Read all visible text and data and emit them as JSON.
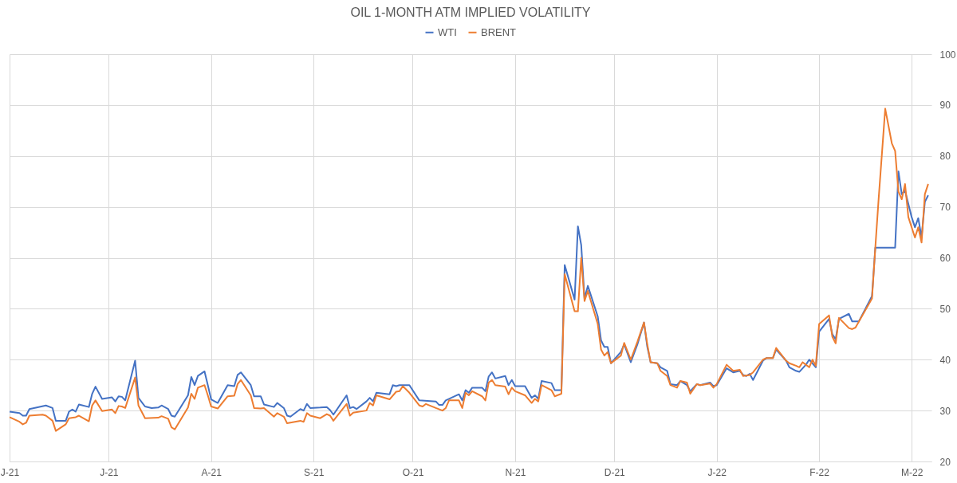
{
  "chart_data": {
    "type": "line",
    "title": "OIL 1-MONTH ATM IMPLIED VOLATILITY",
    "xlim": [
      "2021-06-01",
      "2022-03-07"
    ],
    "xticks": [
      {
        "value": "2021-06-01",
        "label": "J-21"
      },
      {
        "value": "2021-07-01",
        "label": "J-21"
      },
      {
        "value": "2021-08-01",
        "label": "A-21"
      },
      {
        "value": "2021-09-01",
        "label": "S-21"
      },
      {
        "value": "2021-10-01",
        "label": "O-21"
      },
      {
        "value": "2021-11-01",
        "label": "N-21"
      },
      {
        "value": "2021-12-01",
        "label": "D-21"
      },
      {
        "value": "2022-01-01",
        "label": "J-22"
      },
      {
        "value": "2022-02-01",
        "label": "F-22"
      },
      {
        "value": "2022-03-01",
        "label": "M-22"
      }
    ],
    "ylim": [
      20,
      100
    ],
    "yticks": [
      20,
      30,
      40,
      50,
      60,
      70,
      80,
      90,
      100
    ],
    "grid": true,
    "legend": "top",
    "marker": "none",
    "line_style": "solid",
    "series": [
      {
        "name": "WTI",
        "color": "#4472c4",
        "x": [
          "2021-06-01",
          "2021-06-04",
          "2021-06-05",
          "2021-06-06",
          "2021-06-07",
          "2021-06-12",
          "2021-06-14",
          "2021-06-15",
          "2021-06-18",
          "2021-06-19",
          "2021-06-20",
          "2021-06-21",
          "2021-06-22",
          "2021-06-25",
          "2021-06-26",
          "2021-06-27",
          "2021-06-29",
          "2021-07-02",
          "2021-07-03",
          "2021-07-04",
          "2021-07-05",
          "2021-07-06",
          "2021-07-09",
          "2021-07-10",
          "2021-07-12",
          "2021-07-14",
          "2021-07-16",
          "2021-07-17",
          "2021-07-19",
          "2021-07-20",
          "2021-07-21",
          "2021-07-25",
          "2021-07-26",
          "2021-07-27",
          "2021-07-28",
          "2021-07-30",
          "2021-07-31",
          "2021-08-01",
          "2021-08-03",
          "2021-08-06",
          "2021-08-08",
          "2021-08-09",
          "2021-08-10",
          "2021-08-13",
          "2021-08-14",
          "2021-08-16",
          "2021-08-17",
          "2021-08-20",
          "2021-08-21",
          "2021-08-23",
          "2021-08-24",
          "2021-08-25",
          "2021-08-28",
          "2021-08-29",
          "2021-08-30",
          "2021-08-31",
          "2021-09-03",
          "2021-09-05",
          "2021-09-06",
          "2021-09-07",
          "2021-09-11",
          "2021-09-12",
          "2021-09-13",
          "2021-09-14",
          "2021-09-17",
          "2021-09-18",
          "2021-09-19",
          "2021-09-20",
          "2021-09-24",
          "2021-09-25",
          "2021-09-26",
          "2021-09-27",
          "2021-09-30",
          "2021-10-03",
          "2021-10-08",
          "2021-10-09",
          "2021-10-10",
          "2021-10-11",
          "2021-10-15",
          "2021-10-16",
          "2021-10-17",
          "2021-10-18",
          "2021-10-19",
          "2021-10-22",
          "2021-10-23",
          "2021-10-24",
          "2021-10-25",
          "2021-10-26",
          "2021-10-29",
          "2021-10-30",
          "2021-10-31",
          "2021-11-01",
          "2021-11-04",
          "2021-11-06",
          "2021-11-07",
          "2021-11-08",
          "2021-11-09",
          "2021-11-12",
          "2021-11-13",
          "2021-11-15",
          "2021-11-16",
          "2021-11-19",
          "2021-11-20",
          "2021-11-21",
          "2021-11-22",
          "2021-11-23",
          "2021-11-26",
          "2021-11-27",
          "2021-11-28",
          "2021-11-29",
          "2021-11-30",
          "2021-12-03",
          "2021-12-04",
          "2021-12-06",
          "2021-12-08",
          "2021-12-10",
          "2021-12-11",
          "2021-12-12",
          "2021-12-14",
          "2021-12-15",
          "2021-12-17",
          "2021-12-18",
          "2021-12-20",
          "2021-12-21",
          "2021-12-23",
          "2021-12-24",
          "2021-12-26",
          "2021-12-27",
          "2021-12-30",
          "2021-12-31",
          "2022-01-01",
          "2022-01-04",
          "2022-01-06",
          "2022-01-08",
          "2022-01-09",
          "2022-01-10",
          "2022-01-11",
          "2022-01-12",
          "2022-01-15",
          "2022-01-16",
          "2022-01-18",
          "2022-01-19",
          "2022-01-22",
          "2022-01-23",
          "2022-01-25",
          "2022-01-26",
          "2022-01-28",
          "2022-01-29",
          "2022-01-31",
          "2022-02-01",
          "2022-02-04",
          "2022-02-05",
          "2022-02-06",
          "2022-02-07",
          "2022-02-10",
          "2022-02-11",
          "2022-02-13",
          "2022-02-17",
          "2022-02-18",
          "2022-02-24",
          "2022-02-25",
          "2022-02-26",
          "2022-02-27",
          "2022-03-01",
          "2022-03-02",
          "2022-03-03",
          "2022-03-04",
          "2022-03-05",
          "2022-03-06"
        ],
        "values": [
          29.8,
          29.5,
          29.0,
          29.0,
          30.3,
          31.0,
          30.5,
          28.0,
          28.0,
          29.8,
          30.2,
          29.8,
          31.2,
          30.7,
          33.3,
          34.7,
          32.3,
          32.6,
          31.8,
          32.8,
          32.7,
          32.0,
          39.8,
          32.5,
          30.8,
          30.5,
          30.6,
          31.0,
          30.3,
          29.0,
          28.8,
          33.0,
          36.6,
          35.0,
          36.8,
          37.7,
          35.0,
          32.2,
          31.5,
          35.0,
          34.8,
          37.0,
          37.5,
          35.0,
          32.8,
          32.8,
          31.2,
          30.7,
          31.5,
          30.5,
          29.0,
          28.8,
          30.3,
          30.0,
          31.3,
          30.5,
          30.6,
          30.7,
          30.1,
          29.2,
          33.0,
          30.5,
          30.7,
          30.3,
          31.8,
          32.5,
          31.8,
          33.5,
          33.2,
          35.0,
          34.8,
          35.0,
          35.0,
          32.0,
          31.8,
          31.1,
          31.1,
          32.0,
          33.2,
          32.0,
          34.0,
          33.5,
          34.5,
          34.5,
          33.8,
          36.7,
          37.5,
          36.3,
          36.8,
          35.0,
          36.0,
          34.8,
          34.8,
          32.5,
          33.0,
          32.3,
          35.8,
          35.4,
          34.0,
          34.0,
          58.6,
          51.8,
          66.2,
          62.5,
          52.0,
          54.5,
          48.5,
          43.8,
          42.5,
          42.5,
          39.3,
          41.5,
          43.0,
          39.5,
          43.0,
          47.3,
          42.5,
          39.5,
          39.3,
          38.5,
          37.8,
          35.2,
          35.0,
          35.8,
          35.0,
          33.8,
          35.2,
          35.0,
          35.5,
          34.8,
          35.0,
          38.3,
          37.5,
          37.8,
          37.0,
          36.8,
          37.2,
          36.0,
          39.8,
          40.3,
          40.3,
          42.0,
          39.8,
          38.5,
          37.8,
          37.6,
          39.0,
          40.0,
          38.5,
          45.5,
          48.0,
          45.0,
          44.0,
          48.0,
          49.0,
          47.5,
          47.5,
          52.5,
          62.0,
          62.0,
          77.0,
          72.5,
          73.2,
          68.0,
          66.0,
          67.8,
          64.0,
          71.0,
          72.3
        ]
      },
      {
        "name": "BRENT",
        "color": "#ed7d31",
        "x": [
          "2021-06-01",
          "2021-06-04",
          "2021-06-05",
          "2021-06-06",
          "2021-06-07",
          "2021-06-11",
          "2021-06-12",
          "2021-06-14",
          "2021-06-15",
          "2021-06-18",
          "2021-06-19",
          "2021-06-21",
          "2021-06-22",
          "2021-06-25",
          "2021-06-26",
          "2021-06-27",
          "2021-06-29",
          "2021-07-02",
          "2021-07-03",
          "2021-07-04",
          "2021-07-05",
          "2021-07-06",
          "2021-07-09",
          "2021-07-10",
          "2021-07-12",
          "2021-07-16",
          "2021-07-17",
          "2021-07-19",
          "2021-07-20",
          "2021-07-21",
          "2021-07-25",
          "2021-07-26",
          "2021-07-27",
          "2021-07-28",
          "2021-07-30",
          "2021-07-31",
          "2021-08-01",
          "2021-08-03",
          "2021-08-06",
          "2021-08-08",
          "2021-08-09",
          "2021-08-10",
          "2021-08-13",
          "2021-08-14",
          "2021-08-16",
          "2021-08-17",
          "2021-08-20",
          "2021-08-21",
          "2021-08-23",
          "2021-08-24",
          "2021-08-28",
          "2021-08-29",
          "2021-08-30",
          "2021-08-31",
          "2021-09-03",
          "2021-09-05",
          "2021-09-06",
          "2021-09-07",
          "2021-09-11",
          "2021-09-12",
          "2021-09-13",
          "2021-09-17",
          "2021-09-18",
          "2021-09-19",
          "2021-09-20",
          "2021-09-24",
          "2021-09-26",
          "2021-09-27",
          "2021-09-28",
          "2021-09-30",
          "2021-10-03",
          "2021-10-04",
          "2021-10-05",
          "2021-10-08",
          "2021-10-10",
          "2021-10-11",
          "2021-10-12",
          "2021-10-15",
          "2021-10-16",
          "2021-10-17",
          "2021-10-18",
          "2021-10-19",
          "2021-10-22",
          "2021-10-23",
          "2021-10-24",
          "2021-10-25",
          "2021-10-26",
          "2021-10-29",
          "2021-10-30",
          "2021-10-31",
          "2021-11-01",
          "2021-11-04",
          "2021-11-06",
          "2021-11-07",
          "2021-11-08",
          "2021-11-09",
          "2021-11-12",
          "2021-11-13",
          "2021-11-15",
          "2021-11-16",
          "2021-11-19",
          "2021-11-20",
          "2021-11-21",
          "2021-11-22",
          "2021-11-23",
          "2021-11-26",
          "2021-11-27",
          "2021-11-28",
          "2021-11-29",
          "2021-11-30",
          "2021-12-03",
          "2021-12-04",
          "2021-12-06",
          "2021-12-08",
          "2021-12-10",
          "2021-12-11",
          "2021-12-12",
          "2021-12-14",
          "2021-12-15",
          "2021-12-17",
          "2021-12-18",
          "2021-12-20",
          "2021-12-21",
          "2021-12-23",
          "2021-12-24",
          "2021-12-26",
          "2021-12-27",
          "2021-12-30",
          "2021-12-31",
          "2022-01-01",
          "2022-01-04",
          "2022-01-06",
          "2022-01-08",
          "2022-01-09",
          "2022-01-11",
          "2022-01-12",
          "2022-01-15",
          "2022-01-16",
          "2022-01-18",
          "2022-01-19",
          "2022-01-22",
          "2022-01-23",
          "2022-01-25",
          "2022-01-26",
          "2022-01-27",
          "2022-01-28",
          "2022-01-29",
          "2022-01-30",
          "2022-01-31",
          "2022-02-01",
          "2022-02-04",
          "2022-02-05",
          "2022-02-06",
          "2022-02-07",
          "2022-02-10",
          "2022-02-11",
          "2022-02-12",
          "2022-02-17",
          "2022-02-18",
          "2022-02-19",
          "2022-02-21",
          "2022-02-23",
          "2022-02-24",
          "2022-02-25",
          "2022-02-26",
          "2022-02-27",
          "2022-02-28",
          "2022-03-02",
          "2022-03-03",
          "2022-03-04",
          "2022-03-05",
          "2022-03-06"
        ],
        "values": [
          28.7,
          27.8,
          27.3,
          27.6,
          29.0,
          29.2,
          29.0,
          28.0,
          26.0,
          27.3,
          28.5,
          28.7,
          29.0,
          27.9,
          31.0,
          32.0,
          29.9,
          30.2,
          29.5,
          30.9,
          30.8,
          30.5,
          36.5,
          31.0,
          28.5,
          28.6,
          28.9,
          28.4,
          26.7,
          26.3,
          30.6,
          33.3,
          32.3,
          34.5,
          35.0,
          33.0,
          30.8,
          30.4,
          32.8,
          32.9,
          35.2,
          36.0,
          33.0,
          30.5,
          30.4,
          30.5,
          28.8,
          29.5,
          28.8,
          27.5,
          28.0,
          27.8,
          29.5,
          29.0,
          28.5,
          29.3,
          29.0,
          28.0,
          31.3,
          29.0,
          29.6,
          30.0,
          31.5,
          31.0,
          33.0,
          32.2,
          33.7,
          33.8,
          34.8,
          33.5,
          31.0,
          30.8,
          31.3,
          30.5,
          30.0,
          30.5,
          32.0,
          32.0,
          30.5,
          33.5,
          33.0,
          33.8,
          32.8,
          32.0,
          35.5,
          36.0,
          35.0,
          34.7,
          33.2,
          34.5,
          33.8,
          33.0,
          31.5,
          32.3,
          31.8,
          35.0,
          34.0,
          32.8,
          33.3,
          56.8,
          49.5,
          49.5,
          60.0,
          51.5,
          53.5,
          47.0,
          42.0,
          40.8,
          41.5,
          39.3,
          40.8,
          43.3,
          40.0,
          43.5,
          47.3,
          43.0,
          39.5,
          39.3,
          37.8,
          36.8,
          35.0,
          34.5,
          35.8,
          35.5,
          33.3,
          35.2,
          35.0,
          35.3,
          34.5,
          35.2,
          39.0,
          37.8,
          38.0,
          36.8,
          37.0,
          37.5,
          40.0,
          40.3,
          40.3,
          42.3,
          39.8,
          39.3,
          38.8,
          38.5,
          39.5,
          39.0,
          38.5,
          40.0,
          38.8,
          47.0,
          48.7,
          44.5,
          43.2,
          48.2,
          46.2,
          46.0,
          46.3,
          52.0,
          62.0,
          71.5,
          89.3,
          82.5,
          81.0,
          73.0,
          71.5,
          74.5,
          68.0,
          64.0,
          66.0,
          63.0,
          72.5,
          74.5
        ]
      }
    ]
  }
}
